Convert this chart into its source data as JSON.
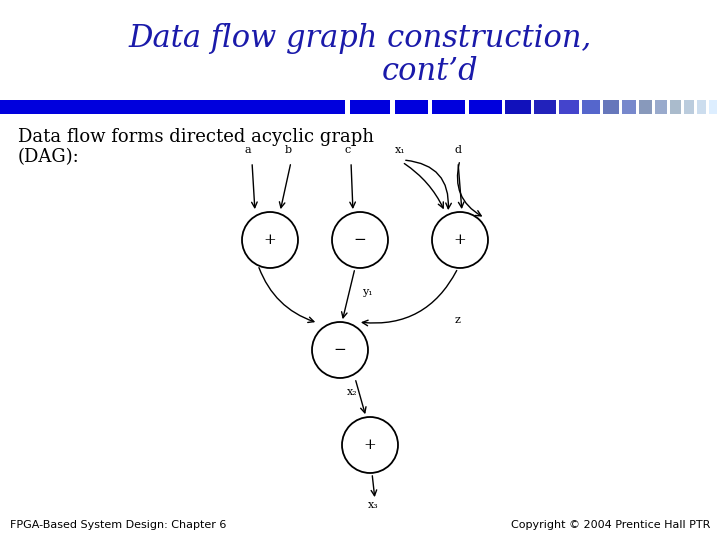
{
  "title_line1": "Data flow graph construction,",
  "title_line2": "cont’d",
  "title_color": "#1a1aaa",
  "title_fontsize": 22,
  "bg_color": "#ffffff",
  "subtitle_line1": "Data flow forms directed acyclic graph",
  "subtitle_line2": "(DAG):",
  "subtitle_color": "#000000",
  "subtitle_fontsize": 13,
  "footer_left": "FPGA-Based System Design: Chapter 6",
  "footer_right": "Copyright © 2004 Prentice Hall PTR",
  "footer_fontsize": 8,
  "footer_color": "#000000"
}
